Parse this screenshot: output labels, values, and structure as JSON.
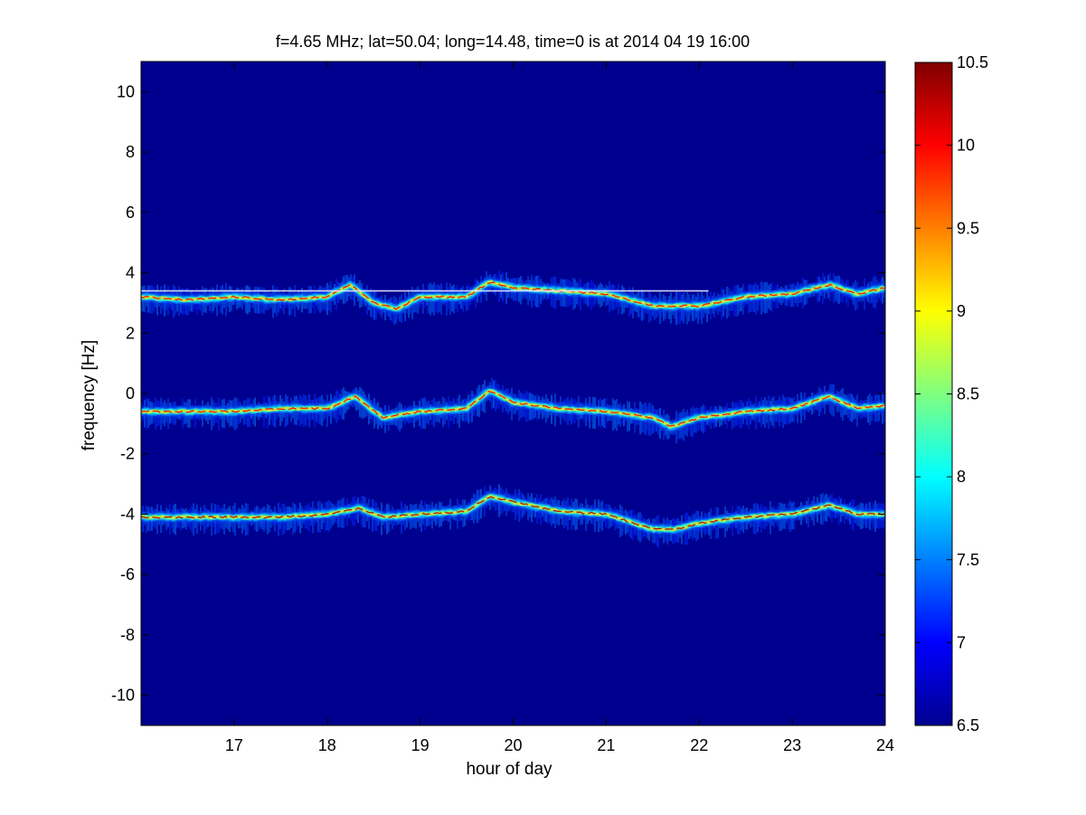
{
  "chart_data": {
    "type": "heatmap",
    "title": "f=4.65 MHz;  lat=50.04; long=14.48, time=0 is at 2014 04 19 16:00",
    "xlabel": "hour of day",
    "ylabel": "frequency [Hz]",
    "xlim": [
      16,
      24
    ],
    "ylim": [
      -11,
      11
    ],
    "xticks": [
      "17",
      "18",
      "19",
      "20",
      "21",
      "22",
      "23",
      "24"
    ],
    "xtick_values": [
      17,
      18,
      19,
      20,
      21,
      22,
      23,
      24
    ],
    "yticks": [
      "10",
      "8",
      "6",
      "4",
      "2",
      "0",
      "-2",
      "-4",
      "-6",
      "-8",
      "-10"
    ],
    "ytick_values": [
      10,
      8,
      6,
      4,
      2,
      0,
      -2,
      -4,
      -6,
      -8,
      -10
    ],
    "colorbar": {
      "colormap": "jet",
      "range": [
        6.5,
        10.5
      ],
      "ticks": [
        "10.5",
        "10",
        "9.5",
        "9",
        "8.5",
        "8",
        "7.5",
        "7",
        "6.5"
      ],
      "tick_values": [
        10.5,
        10,
        9.5,
        9,
        8.5,
        8,
        7.5,
        7,
        6.5
      ]
    },
    "background_value": 6.5,
    "series": [
      {
        "hours": [
          16.0,
          16.5,
          17.0,
          17.5,
          18.0,
          18.25,
          18.5,
          18.75,
          19.0,
          19.5,
          19.75,
          20.0,
          20.5,
          21.0,
          21.5,
          21.75,
          22.0,
          22.5,
          23.0,
          23.4,
          23.7,
          24.0
        ],
        "freq_hz": [
          3.2,
          3.1,
          3.2,
          3.1,
          3.2,
          3.6,
          3.0,
          2.8,
          3.2,
          3.2,
          3.7,
          3.5,
          3.4,
          3.3,
          2.9,
          2.9,
          2.9,
          3.2,
          3.3,
          3.6,
          3.3,
          3.5
        ],
        "peak_value": 10.0
      },
      {
        "hours": [
          16.0,
          16.5,
          17.0,
          17.5,
          18.0,
          18.3,
          18.6,
          19.0,
          19.5,
          19.75,
          20.0,
          20.5,
          21.0,
          21.5,
          21.7,
          22.0,
          22.5,
          23.0,
          23.4,
          23.7,
          24.0
        ],
        "freq_hz": [
          -0.6,
          -0.6,
          -0.6,
          -0.5,
          -0.5,
          -0.1,
          -0.8,
          -0.6,
          -0.5,
          0.1,
          -0.3,
          -0.5,
          -0.6,
          -0.8,
          -1.1,
          -0.8,
          -0.6,
          -0.5,
          -0.1,
          -0.5,
          -0.4
        ],
        "peak_value": 10.0
      },
      {
        "hours": [
          16.0,
          16.5,
          17.0,
          17.5,
          18.0,
          18.35,
          18.6,
          19.0,
          19.5,
          19.75,
          20.0,
          20.5,
          21.0,
          21.5,
          21.75,
          22.0,
          22.5,
          23.0,
          23.4,
          23.7,
          24.0
        ],
        "freq_hz": [
          -4.1,
          -4.1,
          -4.1,
          -4.1,
          -4.0,
          -3.8,
          -4.1,
          -4.0,
          -3.9,
          -3.4,
          -3.6,
          -3.9,
          -4.0,
          -4.5,
          -4.5,
          -4.3,
          -4.1,
          -4.0,
          -3.7,
          -4.0,
          -4.0
        ],
        "peak_value": 10.3
      }
    ],
    "reference_lines": [
      {
        "freq_hz": 3.4,
        "from_hour": 16.0,
        "to_hour": 22.1,
        "color": "#e6e6ff"
      }
    ]
  }
}
